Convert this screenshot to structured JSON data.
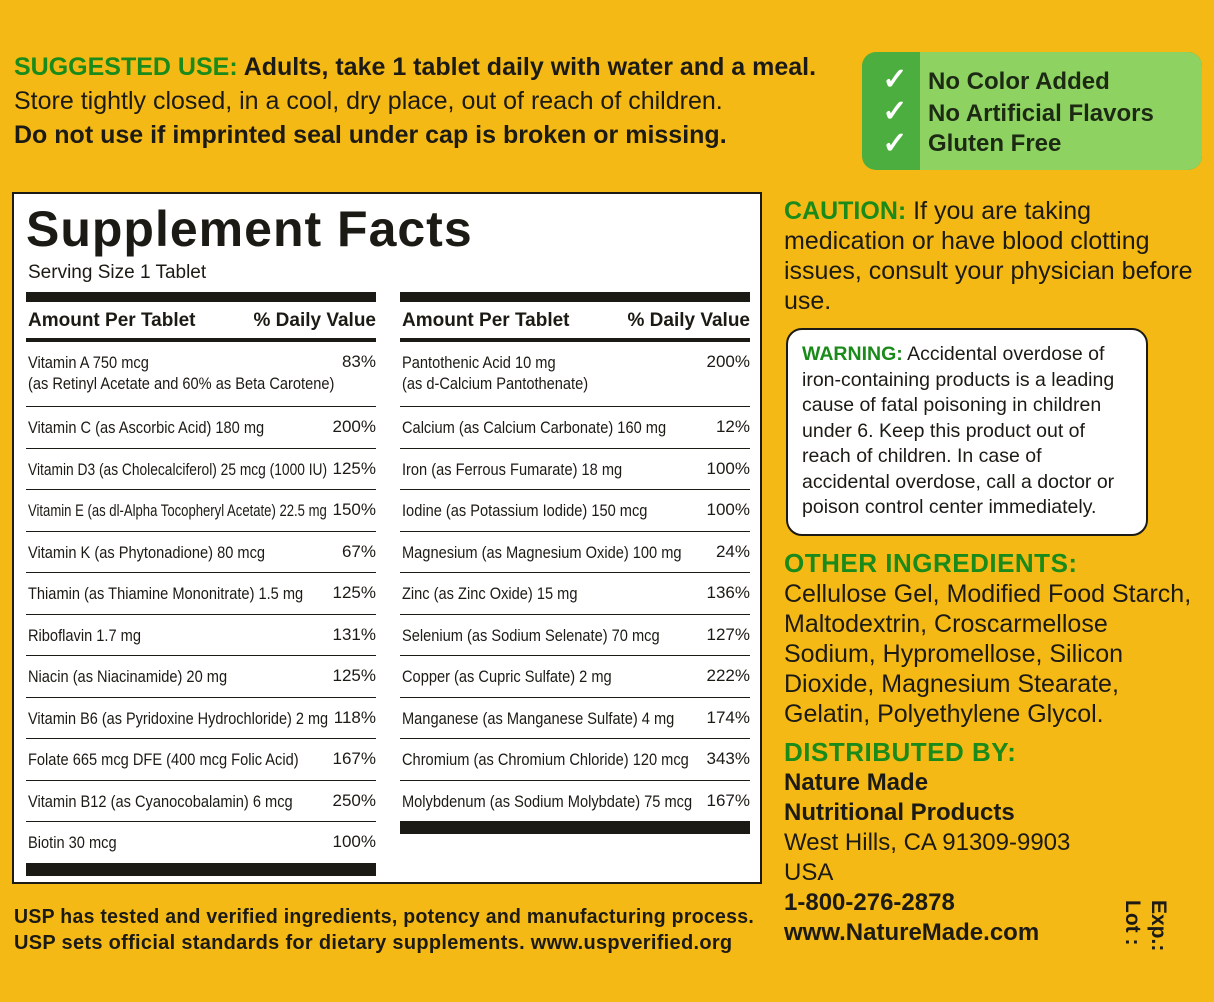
{
  "usage": {
    "label": "SUGGESTED USE:",
    "line1": "Adults, take 1 tablet daily with water and a meal.",
    "line2": "Store tightly closed, in a cool, dry place, out of reach of children.",
    "line3": "Do not use if imprinted seal under cap is broken or missing."
  },
  "badge": {
    "check_icon": "check-icon",
    "items": [
      "No Color Added",
      "No Artificial Flavors",
      "Gluten Free"
    ]
  },
  "facts": {
    "title": "Supplement Facts",
    "serving": "Serving Size 1 Tablet",
    "header_amount": "Amount Per Tablet",
    "header_dv": "% Daily Value",
    "left": [
      {
        "name": "Vitamin A 750 mcg",
        "sub": "(as Retinyl Acetate and 60% as Beta Carotene)",
        "dv": "83%"
      },
      {
        "name": "Vitamin C (as Ascorbic Acid) 180 mg",
        "dv": "200%"
      },
      {
        "name": "Vitamin D3 (as Cholecalciferol) 25 mcg (1000 IU)",
        "dv": "125%"
      },
      {
        "name": "Vitamin E (as dl-Alpha Tocopheryl Acetate) 22.5 mg",
        "dv": "150%"
      },
      {
        "name": "Vitamin K (as Phytonadione) 80 mcg",
        "dv": "67%"
      },
      {
        "name": "Thiamin (as Thiamine Mononitrate) 1.5 mg",
        "dv": "125%"
      },
      {
        "name": "Riboflavin 1.7 mg",
        "dv": "131%"
      },
      {
        "name": "Niacin (as Niacinamide) 20 mg",
        "dv": "125%"
      },
      {
        "name": "Vitamin B6 (as Pyridoxine Hydrochloride) 2 mg",
        "dv": "118%"
      },
      {
        "name": "Folate 665 mcg DFE (400 mcg Folic Acid)",
        "dv": "167%"
      },
      {
        "name": "Vitamin B12 (as Cyanocobalamin) 6 mcg",
        "dv": "250%"
      },
      {
        "name": "Biotin 30 mcg",
        "dv": "100%"
      }
    ],
    "right": [
      {
        "name": "Pantothenic Acid 10 mg",
        "sub": "(as d-Calcium Pantothenate)",
        "dv": "200%"
      },
      {
        "name": "Calcium (as Calcium Carbonate) 160 mg",
        "dv": "12%"
      },
      {
        "name": "Iron (as Ferrous Fumarate) 18 mg",
        "dv": "100%"
      },
      {
        "name": "Iodine (as Potassium Iodide) 150 mcg",
        "dv": "100%"
      },
      {
        "name": "Magnesium (as Magnesium Oxide) 100 mg",
        "dv": "24%"
      },
      {
        "name": "Zinc (as Zinc Oxide) 15 mg",
        "dv": "136%"
      },
      {
        "name": "Selenium (as Sodium Selenate) 70 mcg",
        "dv": "127%"
      },
      {
        "name": "Copper (as Cupric Sulfate) 2 mg",
        "dv": "222%"
      },
      {
        "name": "Manganese (as Manganese Sulfate) 4 mg",
        "dv": "174%"
      },
      {
        "name": "Chromium (as Chromium Chloride) 120 mcg",
        "dv": "343%"
      },
      {
        "name": "Molybdenum (as Sodium Molybdate) 75 mcg",
        "dv": "167%"
      }
    ]
  },
  "usp": {
    "line1": "USP has tested and verified ingredients, potency and manufacturing process.",
    "line2": "USP sets official standards for dietary supplements. www.uspverified.org"
  },
  "caution": {
    "label": "CAUTION:",
    "text": "If you are taking medication or have blood clotting issues, consult your physician before use."
  },
  "warning": {
    "label": "WARNING:",
    "text": "Accidental overdose of iron-containing products is a leading cause of fatal poisoning in children under 6. Keep this product out of reach of children. In case of accidental overdose, call a doctor or poison control center immediately."
  },
  "other": {
    "heading": "OTHER INGREDIENTS:",
    "text": "Cellulose Gel, Modified Food Starch, Maltodextrin, Croscarmellose Sodium, Hypromellose, Silicon Dioxide, Magnesium Stearate, Gelatin, Polyethylene Glycol."
  },
  "distributor": {
    "heading": "DISTRIBUTED BY:",
    "name1": "Nature Made",
    "name2": "Nutritional Products",
    "address": "West Hills, CA 91309-9903",
    "country": "USA",
    "phone": "1-800-276-2878",
    "web": "www.NatureMade.com"
  },
  "lot": {
    "lot": "Lot :",
    "exp": "Exp.:"
  },
  "colors": {
    "background": "#f5b915",
    "green_text": "#1a8a1a",
    "badge_dark": "#4cae3e",
    "badge_light": "#8ed261"
  }
}
